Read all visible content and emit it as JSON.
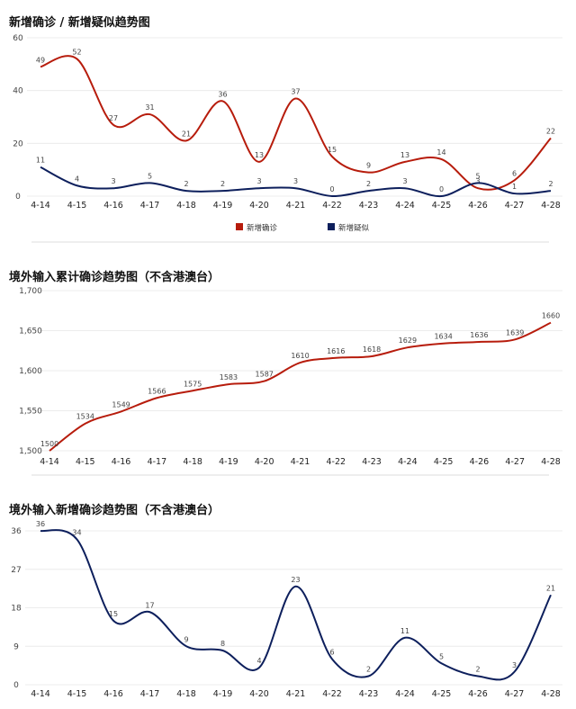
{
  "charts": {
    "c1_title": "新增确诊 / 新增疑似趋势图",
    "c2_title": "境外输入累计确诊趋势图（不含港澳台）",
    "c3_title": "境外输入新增确诊趋势图（不含港澳台）"
  },
  "colors": {
    "red": "#b71c0c",
    "navy": "#0d1f5c",
    "grid": "#ececec"
  },
  "chart_data": [
    {
      "type": "line",
      "title": "新增确诊 / 新增疑似趋势图",
      "categories": [
        "4-14",
        "4-15",
        "4-16",
        "4-17",
        "4-18",
        "4-19",
        "4-20",
        "4-21",
        "4-22",
        "4-23",
        "4-24",
        "4-25",
        "4-26",
        "4-27",
        "4-28"
      ],
      "series": [
        {
          "name": "新增确诊",
          "color": "#b71c0c",
          "values": [
            49,
            52,
            27,
            31,
            21,
            36,
            13,
            37,
            15,
            9,
            13,
            14,
            3,
            6,
            22
          ]
        },
        {
          "name": "新增疑似",
          "color": "#0d1f5c",
          "values": [
            11,
            4,
            3,
            5,
            2,
            2,
            3,
            3,
            0,
            2,
            3,
            0,
            5,
            1,
            2
          ]
        }
      ],
      "yticks": [
        "0",
        "20",
        "40",
        "60"
      ],
      "ylim": [
        0,
        60
      ],
      "legend": "bottom-center",
      "grid": true
    },
    {
      "type": "line",
      "title": "境外输入累计确诊趋势图（不含港澳台）",
      "categories": [
        "4-14",
        "4-15",
        "4-16",
        "4-17",
        "4-18",
        "4-19",
        "4-20",
        "4-21",
        "4-22",
        "4-23",
        "4-24",
        "4-25",
        "4-26",
        "4-27",
        "4-28"
      ],
      "series": [
        {
          "color": "#b71c0c",
          "values": [
            1500,
            1534,
            1549,
            1566,
            1575,
            1583,
            1587,
            1610,
            1616,
            1618,
            1629,
            1634,
            1636,
            1639,
            1660
          ]
        }
      ],
      "yticks": [
        "1,500",
        "1,550",
        "1,600",
        "1,650",
        "1,700"
      ],
      "ylim": [
        1500,
        1700
      ],
      "grid": true
    },
    {
      "type": "line",
      "title": "境外输入新增确诊趋势图（不含港澳台）",
      "categories": [
        "4-14",
        "4-15",
        "4-16",
        "4-17",
        "4-18",
        "4-19",
        "4-20",
        "4-21",
        "4-22",
        "4-23",
        "4-24",
        "4-25",
        "4-26",
        "4-27",
        "4-28"
      ],
      "series": [
        {
          "color": "#0d1f5c",
          "values": [
            36,
            34,
            15,
            17,
            9,
            8,
            4,
            23,
            6,
            2,
            11,
            5,
            2,
            3,
            21
          ]
        }
      ],
      "yticks": [
        "0",
        "9",
        "18",
        "27",
        "36"
      ],
      "ylim": [
        0,
        36
      ],
      "grid": true
    }
  ]
}
